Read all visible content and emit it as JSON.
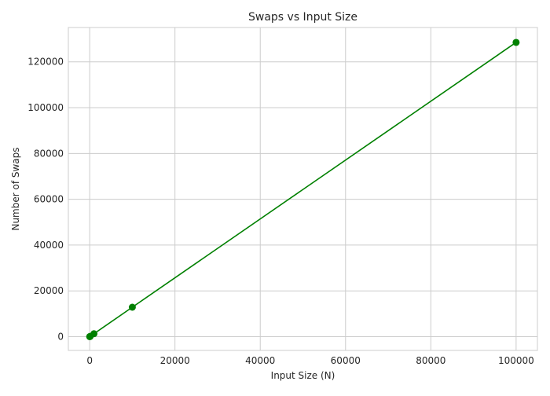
{
  "chart_data": {
    "type": "line",
    "title": "Swaps vs Input Size",
    "xlabel": "Input Size (N)",
    "ylabel": "Number of Swaps",
    "grid": true,
    "legend": "none",
    "xlim": [
      -5000,
      105000
    ],
    "ylim": [
      -6000,
      135000
    ],
    "xticks": [
      0,
      20000,
      40000,
      60000,
      80000,
      100000
    ],
    "yticks": [
      0,
      20000,
      40000,
      60000,
      80000,
      100000,
      120000
    ],
    "series": [
      {
        "color": "#008000",
        "marker": "circle",
        "x": [
          10,
          100,
          1000,
          10000,
          100000
        ],
        "y": [
          13,
          130,
          1290,
          12870,
          128500
        ]
      }
    ]
  },
  "colors": {
    "line": "#008000",
    "grid": "#cccccc",
    "spine": "#cccccc",
    "text": "#262626"
  }
}
